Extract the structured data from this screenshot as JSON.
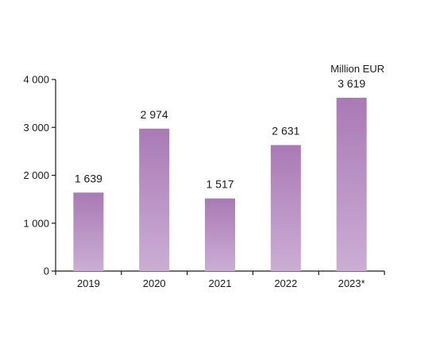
{
  "chart_data": {
    "type": "bar",
    "categories": [
      "2019",
      "2020",
      "2021",
      "2022",
      "2023*"
    ],
    "values": [
      1639,
      2974,
      1517,
      2631,
      3619
    ],
    "value_labels": [
      "1 639",
      "2 974",
      "1 517",
      "2 631",
      "3 619"
    ],
    "unit_label": "Million EUR",
    "ylim": [
      0,
      4000
    ],
    "yticks": [
      0,
      1000,
      2000,
      3000,
      4000
    ],
    "ytick_labels": [
      "0",
      "1 000",
      "2 000",
      "3 000",
      "4 000"
    ],
    "grid": false,
    "colors": {
      "bar_top": "#a97ab5",
      "bar_bottom": "#cbaed4",
      "axis": "#1a1a1a"
    }
  }
}
